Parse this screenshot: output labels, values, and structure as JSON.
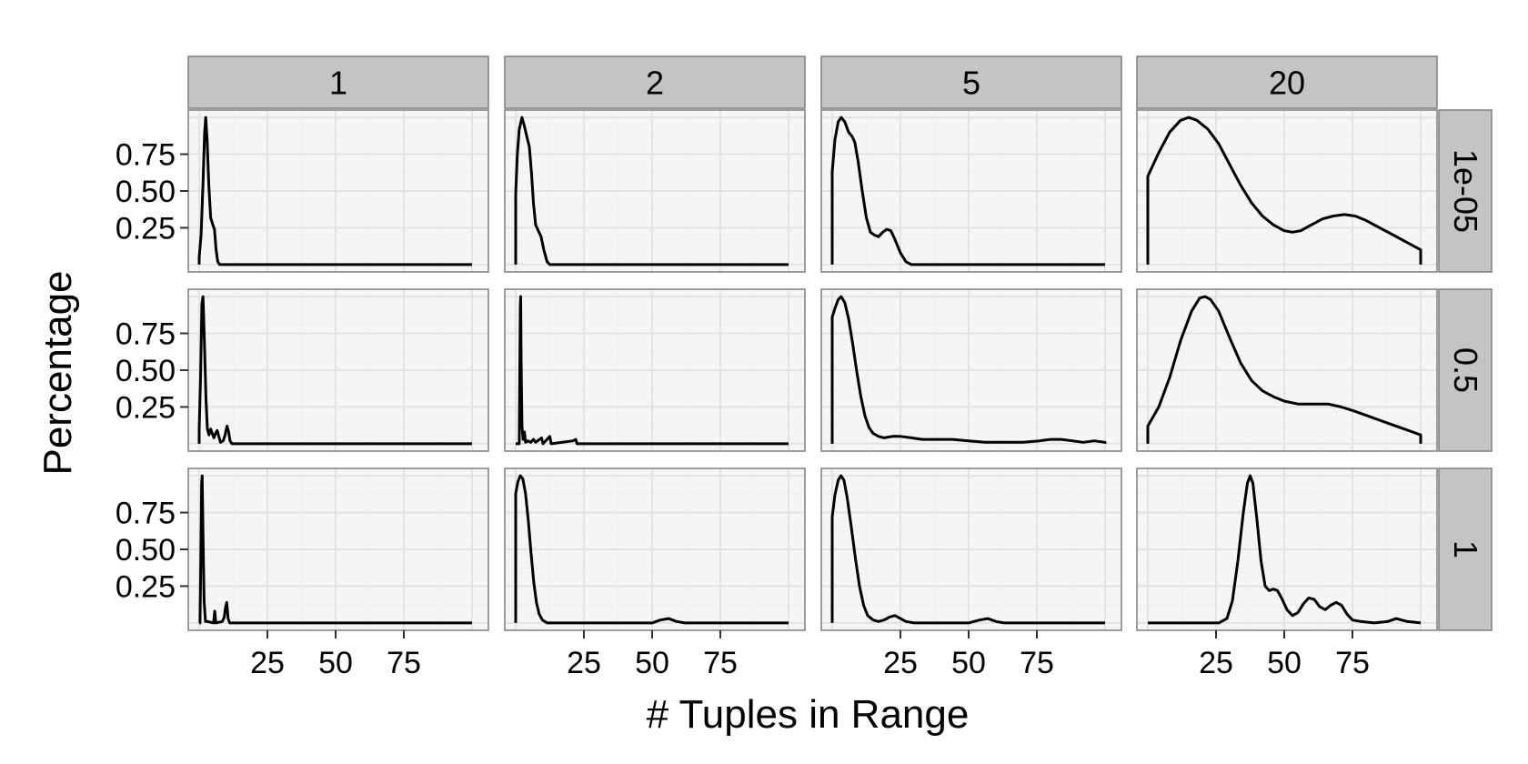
{
  "chart_data": {
    "type": "line",
    "layout": "facet_grid",
    "xlabel": "# Tuples in Range",
    "ylabel": "Percentage",
    "x_ticks": [
      25,
      50,
      75
    ],
    "y_ticks": [
      0.25,
      0.5,
      0.75
    ],
    "y_tick_labels": [
      "0.25",
      "0.50",
      "0.75"
    ],
    "xlim": [
      -4,
      106
    ],
    "ylim": [
      -0.05,
      1.05
    ],
    "grid": true,
    "col_facets": [
      "1",
      "2",
      "5",
      "20"
    ],
    "row_facets": [
      "1e-05",
      "0.5",
      "1"
    ],
    "colors": {
      "panel_bg": "#f5f5f5",
      "grid_major": "#e3e3e3",
      "grid_minor": "#efefef",
      "strip_bg": "#c4c4c4",
      "panel_border": "#7f7f7f",
      "line": "#000000"
    },
    "panels": [
      {
        "row": 0,
        "col": 0,
        "points": [
          [
            0,
            0
          ],
          [
            0,
            0.05
          ],
          [
            0.7,
            0.2
          ],
          [
            1.4,
            0.55
          ],
          [
            2,
            0.9
          ],
          [
            2.4,
            1.0
          ],
          [
            2.9,
            0.85
          ],
          [
            3.5,
            0.55
          ],
          [
            4.2,
            0.32
          ],
          [
            5,
            0.27
          ],
          [
            5.6,
            0.24
          ],
          [
            6.2,
            0.1
          ],
          [
            6.8,
            0.02
          ],
          [
            7.5,
            0
          ],
          [
            100,
            0
          ]
        ]
      },
      {
        "row": 0,
        "col": 1,
        "points": [
          [
            0,
            0
          ],
          [
            0,
            0.48
          ],
          [
            0.6,
            0.75
          ],
          [
            1.3,
            0.92
          ],
          [
            2.3,
            1.0
          ],
          [
            3.2,
            0.94
          ],
          [
            4.2,
            0.86
          ],
          [
            5,
            0.8
          ],
          [
            5.8,
            0.62
          ],
          [
            6.5,
            0.42
          ],
          [
            7.3,
            0.27
          ],
          [
            8.3,
            0.23
          ],
          [
            9.3,
            0.19
          ],
          [
            10.3,
            0.1
          ],
          [
            11.5,
            0.02
          ],
          [
            12.5,
            0
          ],
          [
            100,
            0
          ]
        ]
      },
      {
        "row": 0,
        "col": 2,
        "points": [
          [
            0,
            0
          ],
          [
            0,
            0.63
          ],
          [
            1,
            0.85
          ],
          [
            2.2,
            0.97
          ],
          [
            3.3,
            1.0
          ],
          [
            4.6,
            0.97
          ],
          [
            6,
            0.9
          ],
          [
            7.3,
            0.87
          ],
          [
            8.3,
            0.83
          ],
          [
            9.5,
            0.7
          ],
          [
            11,
            0.5
          ],
          [
            12.5,
            0.32
          ],
          [
            14,
            0.22
          ],
          [
            15.5,
            0.2
          ],
          [
            17,
            0.19
          ],
          [
            18.5,
            0.22
          ],
          [
            20,
            0.24
          ],
          [
            21.5,
            0.23
          ],
          [
            23,
            0.17
          ],
          [
            25,
            0.08
          ],
          [
            27,
            0.02
          ],
          [
            29,
            0
          ],
          [
            100,
            0
          ]
        ]
      },
      {
        "row": 0,
        "col": 3,
        "points": [
          [
            0,
            0
          ],
          [
            0,
            0.6
          ],
          [
            4,
            0.76
          ],
          [
            8,
            0.9
          ],
          [
            12,
            0.98
          ],
          [
            15,
            1.0
          ],
          [
            18,
            0.98
          ],
          [
            22,
            0.92
          ],
          [
            26,
            0.82
          ],
          [
            30,
            0.68
          ],
          [
            34,
            0.54
          ],
          [
            38,
            0.42
          ],
          [
            42,
            0.33
          ],
          [
            46,
            0.27
          ],
          [
            50,
            0.23
          ],
          [
            53,
            0.22
          ],
          [
            56,
            0.23
          ],
          [
            60,
            0.27
          ],
          [
            64,
            0.31
          ],
          [
            68,
            0.33
          ],
          [
            72,
            0.34
          ],
          [
            76,
            0.33
          ],
          [
            80,
            0.3
          ],
          [
            85,
            0.25
          ],
          [
            90,
            0.2
          ],
          [
            95,
            0.15
          ],
          [
            100,
            0.1
          ],
          [
            100,
            0
          ]
        ]
      },
      {
        "row": 1,
        "col": 0,
        "points": [
          [
            0,
            0
          ],
          [
            0,
            0.1
          ],
          [
            0.5,
            0.45
          ],
          [
            1,
            0.95
          ],
          [
            1.4,
            1.0
          ],
          [
            1.9,
            0.7
          ],
          [
            2.5,
            0.3
          ],
          [
            3,
            0.1
          ],
          [
            3.6,
            0.06
          ],
          [
            4.2,
            0.1
          ],
          [
            4.8,
            0.07
          ],
          [
            5.4,
            0.04
          ],
          [
            6,
            0.07
          ],
          [
            6.6,
            0.09
          ],
          [
            7.2,
            0.05
          ],
          [
            7.8,
            0.01
          ],
          [
            8.8,
            0.02
          ],
          [
            9.5,
            0.06
          ],
          [
            10.2,
            0.12
          ],
          [
            10.8,
            0.08
          ],
          [
            11.3,
            0.02
          ],
          [
            12,
            0
          ],
          [
            100,
            0
          ]
        ]
      },
      {
        "row": 1,
        "col": 1,
        "points": [
          [
            0,
            0
          ],
          [
            1.3,
            0
          ],
          [
            1.5,
            0.5
          ],
          [
            1.7,
            0.95
          ],
          [
            1.85,
            1.0
          ],
          [
            2,
            0.55
          ],
          [
            2.3,
            0.12
          ],
          [
            2.7,
            0.03
          ],
          [
            3.2,
            0.08
          ],
          [
            3.6,
            0.01
          ],
          [
            4.5,
            0.02
          ],
          [
            5.5,
            0.01
          ],
          [
            6.5,
            0.03
          ],
          [
            7.3,
            0.01
          ],
          [
            9.5,
            0.04
          ],
          [
            10,
            0
          ],
          [
            12.5,
            0.05
          ],
          [
            13,
            0
          ],
          [
            21,
            0.02
          ],
          [
            22,
            0.03
          ],
          [
            22.5,
            0
          ],
          [
            100,
            0
          ]
        ]
      },
      {
        "row": 1,
        "col": 2,
        "points": [
          [
            0,
            0
          ],
          [
            0,
            0.86
          ],
          [
            1,
            0.92
          ],
          [
            2.2,
            0.98
          ],
          [
            3.3,
            1.0
          ],
          [
            4.6,
            0.96
          ],
          [
            6,
            0.85
          ],
          [
            7.5,
            0.68
          ],
          [
            9,
            0.49
          ],
          [
            10.5,
            0.32
          ],
          [
            12,
            0.19
          ],
          [
            13.5,
            0.11
          ],
          [
            15,
            0.07
          ],
          [
            17,
            0.05
          ],
          [
            19,
            0.04
          ],
          [
            22,
            0.05
          ],
          [
            25,
            0.05
          ],
          [
            29,
            0.04
          ],
          [
            33,
            0.03
          ],
          [
            38,
            0.03
          ],
          [
            44,
            0.03
          ],
          [
            50,
            0.02
          ],
          [
            56,
            0.01
          ],
          [
            64,
            0.01
          ],
          [
            70,
            0.01
          ],
          [
            76,
            0.02
          ],
          [
            80,
            0.03
          ],
          [
            84,
            0.03
          ],
          [
            88,
            0.02
          ],
          [
            92,
            0.01
          ],
          [
            96,
            0.02
          ],
          [
            100,
            0.01
          ],
          [
            100,
            0
          ]
        ]
      },
      {
        "row": 1,
        "col": 3,
        "points": [
          [
            0,
            0
          ],
          [
            0,
            0.12
          ],
          [
            4,
            0.25
          ],
          [
            8,
            0.45
          ],
          [
            12,
            0.7
          ],
          [
            16,
            0.9
          ],
          [
            19,
            0.99
          ],
          [
            21,
            1.0
          ],
          [
            23,
            0.98
          ],
          [
            26,
            0.9
          ],
          [
            30,
            0.72
          ],
          [
            34,
            0.55
          ],
          [
            38,
            0.43
          ],
          [
            42,
            0.36
          ],
          [
            46,
            0.32
          ],
          [
            50,
            0.29
          ],
          [
            55,
            0.27
          ],
          [
            60,
            0.27
          ],
          [
            66,
            0.27
          ],
          [
            71,
            0.25
          ],
          [
            76,
            0.22
          ],
          [
            82,
            0.18
          ],
          [
            88,
            0.14
          ],
          [
            94,
            0.1
          ],
          [
            100,
            0.06
          ],
          [
            100,
            0
          ]
        ]
      },
      {
        "row": 2,
        "col": 0,
        "points": [
          [
            0,
            0
          ],
          [
            0.3,
            0
          ],
          [
            0.6,
            0.45
          ],
          [
            0.9,
            0.95
          ],
          [
            1.1,
            1.0
          ],
          [
            1.4,
            0.6
          ],
          [
            1.8,
            0.15
          ],
          [
            2.3,
            0.01
          ],
          [
            3,
            0.01
          ],
          [
            5.3,
            0
          ],
          [
            5.7,
            0.08
          ],
          [
            6.1,
            0
          ],
          [
            8.5,
            0.01
          ],
          [
            9.2,
            0.04
          ],
          [
            9.6,
            0.1
          ],
          [
            10.1,
            0.14
          ],
          [
            10.6,
            0.03
          ],
          [
            11.2,
            0
          ],
          [
            100,
            0
          ]
        ]
      },
      {
        "row": 2,
        "col": 1,
        "points": [
          [
            0,
            0
          ],
          [
            0,
            0.88
          ],
          [
            0.8,
            0.96
          ],
          [
            1.7,
            1.0
          ],
          [
            2.6,
            0.98
          ],
          [
            3.6,
            0.88
          ],
          [
            4.6,
            0.7
          ],
          [
            5.6,
            0.48
          ],
          [
            6.6,
            0.28
          ],
          [
            7.6,
            0.14
          ],
          [
            8.6,
            0.06
          ],
          [
            9.8,
            0.02
          ],
          [
            11.5,
            0
          ],
          [
            50,
            0
          ],
          [
            53,
            0.02
          ],
          [
            56,
            0.03
          ],
          [
            59,
            0.01
          ],
          [
            62,
            0
          ],
          [
            100,
            0
          ]
        ]
      },
      {
        "row": 2,
        "col": 2,
        "points": [
          [
            0,
            0
          ],
          [
            0,
            0.72
          ],
          [
            1,
            0.87
          ],
          [
            2.2,
            0.97
          ],
          [
            3.2,
            1.0
          ],
          [
            4.3,
            0.97
          ],
          [
            5.5,
            0.85
          ],
          [
            7,
            0.65
          ],
          [
            8.5,
            0.44
          ],
          [
            10,
            0.25
          ],
          [
            11.5,
            0.12
          ],
          [
            13,
            0.05
          ],
          [
            15,
            0.02
          ],
          [
            17,
            0.01
          ],
          [
            19,
            0.02
          ],
          [
            21,
            0.04
          ],
          [
            23,
            0.05
          ],
          [
            25,
            0.03
          ],
          [
            27,
            0.01
          ],
          [
            30,
            0
          ],
          [
            50,
            0
          ],
          [
            54,
            0.02
          ],
          [
            57,
            0.03
          ],
          [
            60,
            0.01
          ],
          [
            63,
            0
          ],
          [
            100,
            0
          ]
        ]
      },
      {
        "row": 2,
        "col": 3,
        "points": [
          [
            0,
            0
          ],
          [
            26,
            0
          ],
          [
            29,
            0.03
          ],
          [
            31,
            0.15
          ],
          [
            33,
            0.42
          ],
          [
            35,
            0.75
          ],
          [
            36.5,
            0.95
          ],
          [
            37.5,
            1.0
          ],
          [
            38.5,
            0.95
          ],
          [
            40,
            0.7
          ],
          [
            41.5,
            0.42
          ],
          [
            43,
            0.25
          ],
          [
            44.5,
            0.22
          ],
          [
            46,
            0.23
          ],
          [
            47.5,
            0.22
          ],
          [
            49,
            0.17
          ],
          [
            51,
            0.09
          ],
          [
            53,
            0.05
          ],
          [
            55,
            0.07
          ],
          [
            57,
            0.13
          ],
          [
            59,
            0.17
          ],
          [
            61,
            0.16
          ],
          [
            63,
            0.11
          ],
          [
            65,
            0.09
          ],
          [
            67,
            0.12
          ],
          [
            69,
            0.14
          ],
          [
            71,
            0.12
          ],
          [
            73,
            0.06
          ],
          [
            75,
            0.02
          ],
          [
            78,
            0.01
          ],
          [
            83,
            0
          ],
          [
            88,
            0.01
          ],
          [
            91,
            0.03
          ],
          [
            93,
            0.02
          ],
          [
            95,
            0.01
          ],
          [
            100,
            0
          ]
        ]
      }
    ]
  }
}
